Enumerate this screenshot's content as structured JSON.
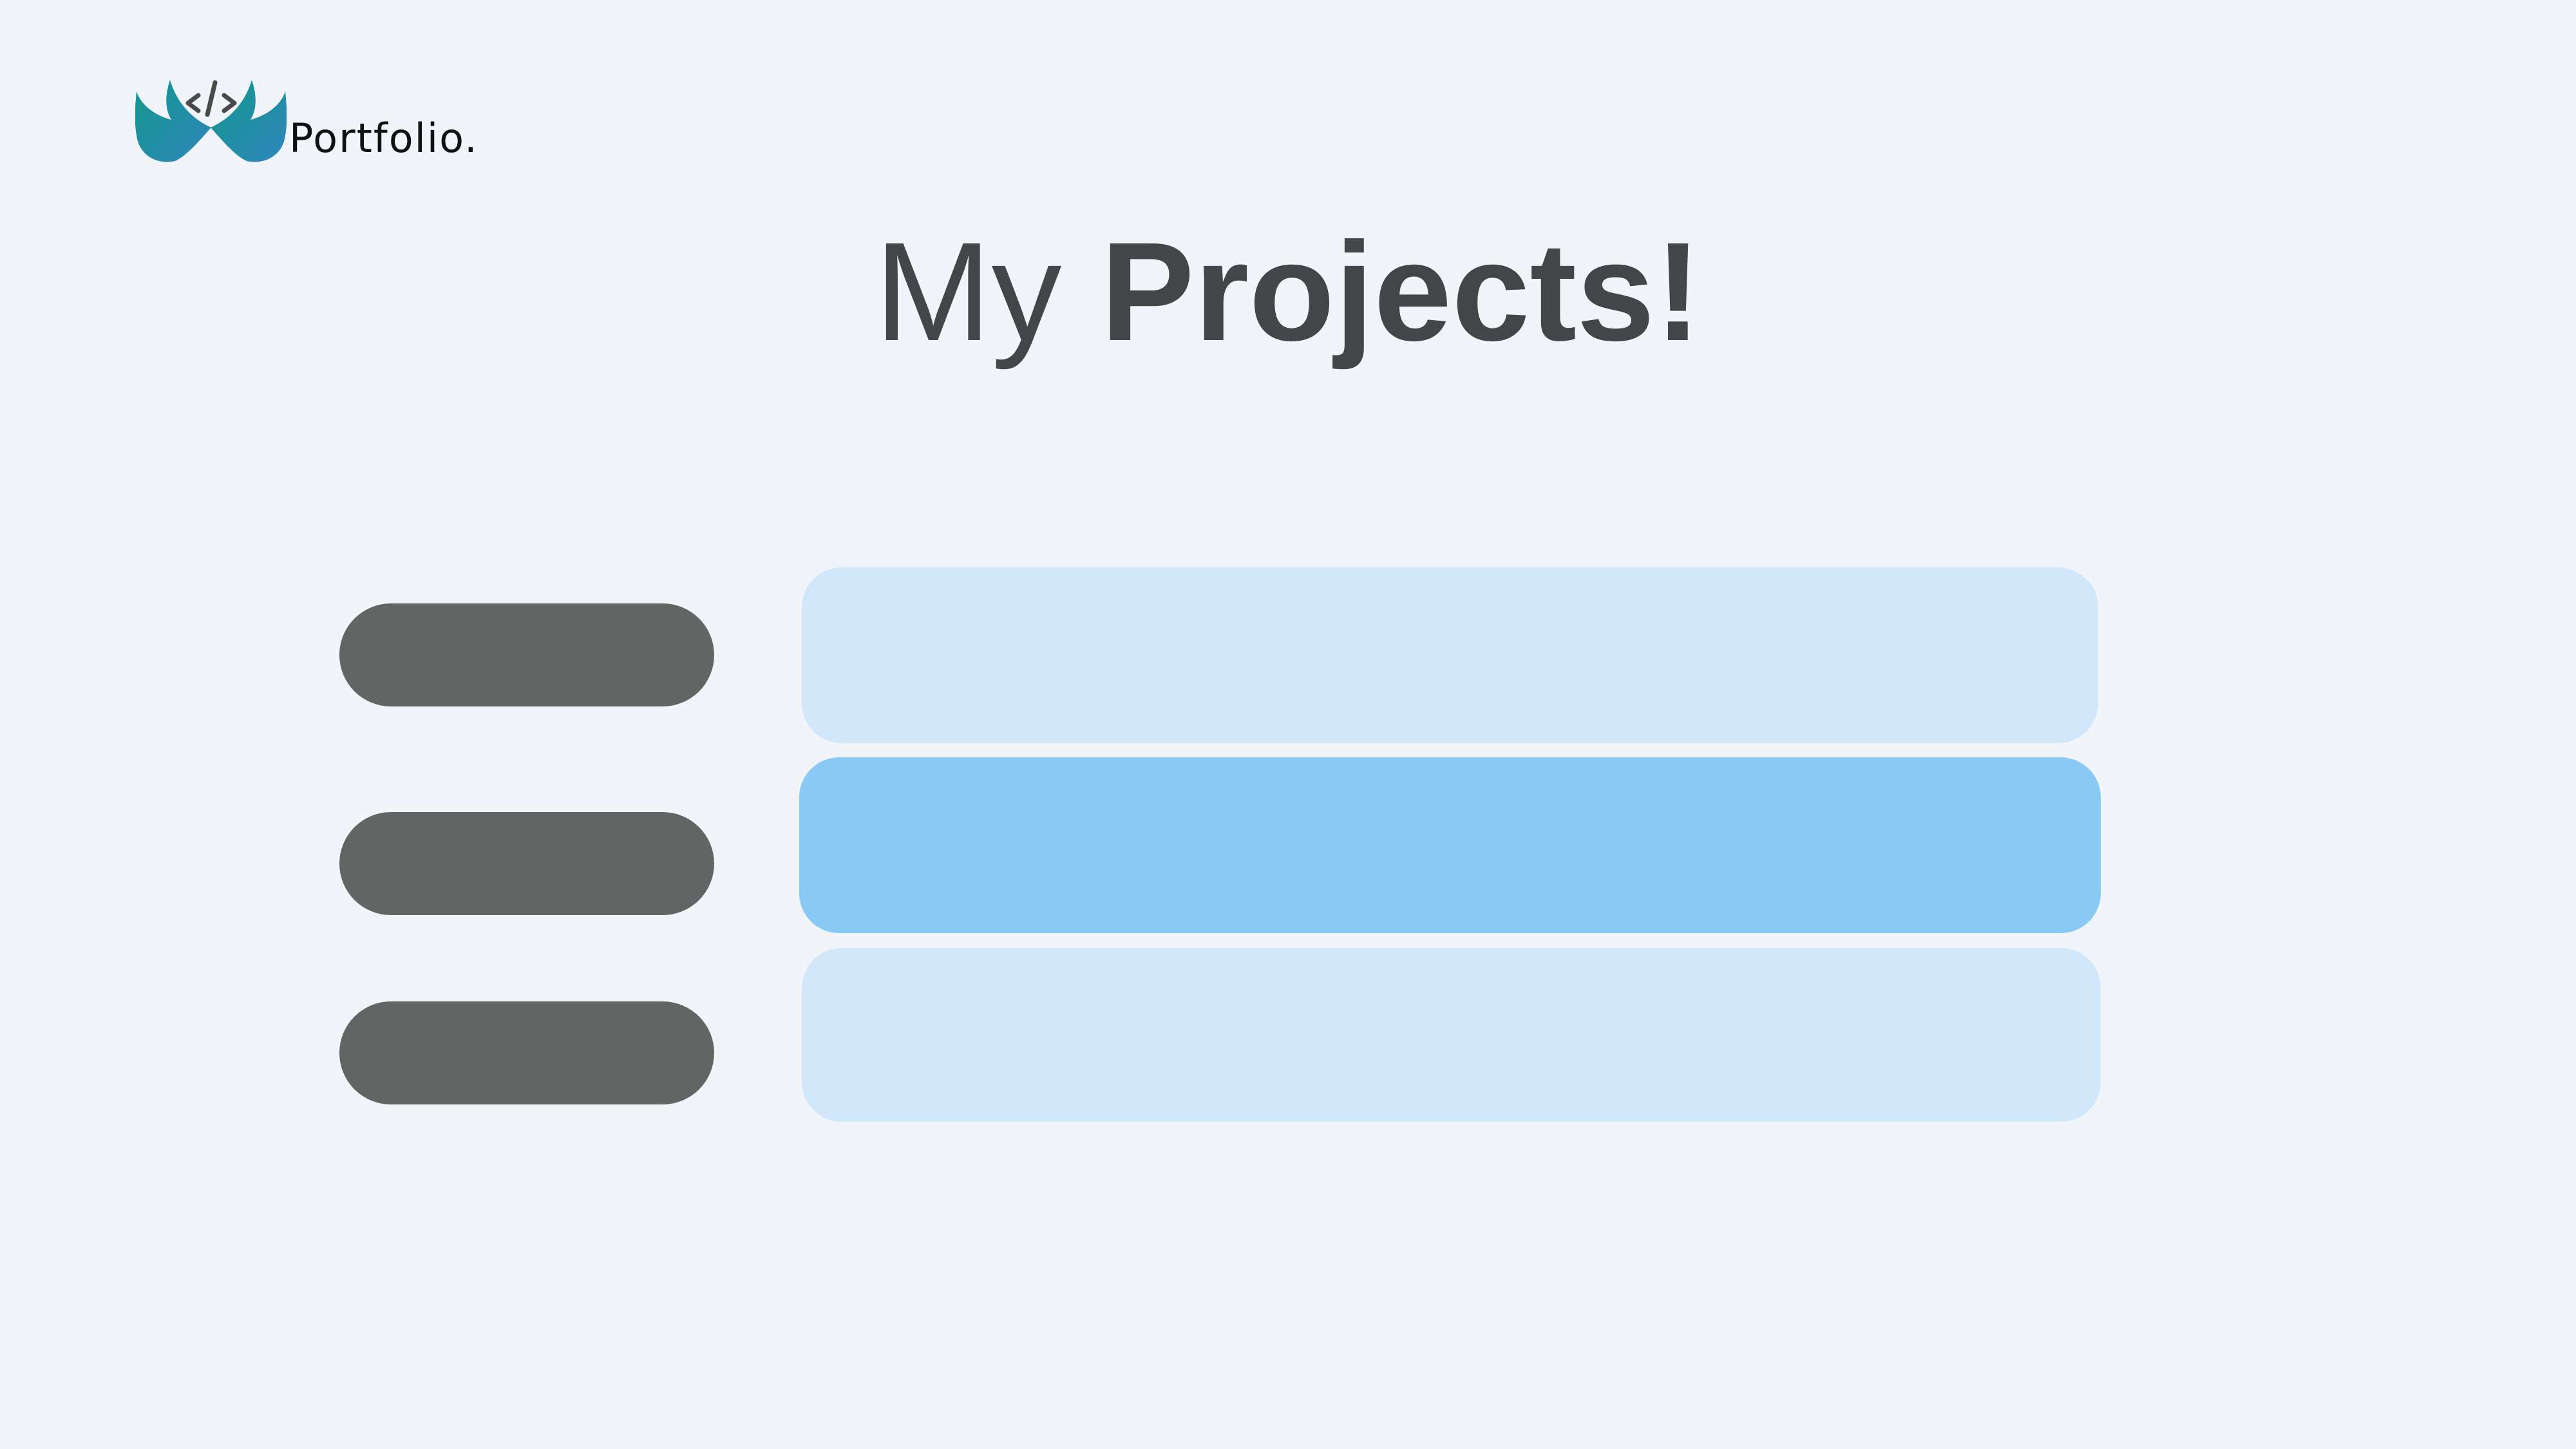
{
  "brand": {
    "logo_icon": "code-tag-icon",
    "name": "Portfolio."
  },
  "heading": {
    "light_word": "My",
    "bold_word": "Projects!"
  },
  "colors": {
    "background": "#f1f5fa",
    "pill": "#636464",
    "card": "#d1e7fa",
    "card_active": "#89c9f3",
    "heading": "#434546",
    "logo_gradient_start": "#14978c",
    "logo_gradient_end": "#2f86bd"
  },
  "projects": {
    "active_index": 1,
    "items": [
      {
        "label": ""
      },
      {
        "label": ""
      },
      {
        "label": ""
      }
    ]
  }
}
